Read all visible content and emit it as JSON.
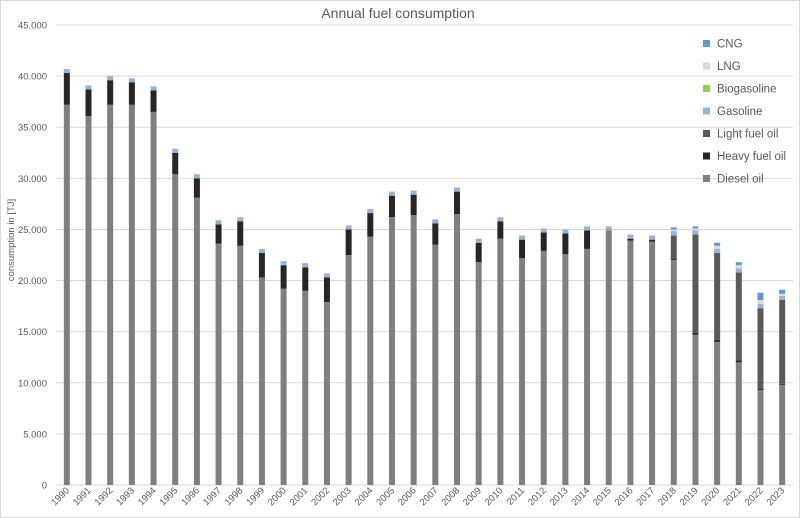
{
  "chart_data": {
    "type": "bar",
    "stacked": true,
    "title": "Annual fuel consumption",
    "xlabel": "",
    "ylabel": "consumption in [TJ]",
    "ylim": [
      0,
      45000
    ],
    "yticks": [
      0,
      5000,
      10000,
      15000,
      20000,
      25000,
      30000,
      35000,
      40000,
      45000
    ],
    "ytick_labels": [
      "0",
      "5.000",
      "10.000",
      "15.000",
      "20.000",
      "25.000",
      "30.000",
      "35.000",
      "40.000",
      "45.000"
    ],
    "grid": true,
    "legend_position": "right",
    "categories": [
      "1990",
      "1991",
      "1992",
      "1993",
      "1994",
      "1995",
      "1996",
      "1997",
      "1998",
      "1999",
      "2000",
      "2001",
      "2002",
      "2003",
      "2004",
      "2005",
      "2006",
      "2007",
      "2008",
      "2009",
      "2010",
      "2011",
      "2012",
      "2013",
      "2014",
      "2015",
      "2016",
      "2017",
      "2018",
      "2019",
      "2020",
      "2021",
      "2022",
      "2023"
    ],
    "series": [
      {
        "name": "Diesel oil",
        "color": "#7f7f7f",
        "values": [
          37200,
          36100,
          37200,
          37200,
          36500,
          30400,
          28100,
          23600,
          23400,
          20300,
          19200,
          19000,
          17900,
          22500,
          24300,
          26200,
          26400,
          23500,
          26500,
          21800,
          24100,
          22200,
          22900,
          22600,
          23100,
          24900,
          23900,
          23800,
          22000,
          14700,
          14000,
          12000,
          9300,
          9800
        ]
      },
      {
        "name": "Heavy fuel oil",
        "color": "#262626",
        "values": [
          3100,
          2600,
          2400,
          2200,
          2100,
          2100,
          1900,
          1900,
          2400,
          2400,
          2300,
          2300,
          2400,
          2500,
          2300,
          2100,
          2000,
          2100,
          2200,
          1900,
          1700,
          1800,
          1800,
          2000,
          1800,
          0,
          200,
          200,
          100,
          200,
          200,
          200,
          100,
          100
        ]
      },
      {
        "name": "Light fuel oil",
        "color": "#595959",
        "values": [
          0,
          0,
          0,
          0,
          0,
          0,
          0,
          0,
          0,
          0,
          0,
          0,
          0,
          0,
          0,
          0,
          0,
          0,
          0,
          0,
          0,
          0,
          0,
          0,
          0,
          0,
          0,
          0,
          2300,
          9600,
          8500,
          8600,
          7900,
          8200
        ]
      },
      {
        "name": "Gasoline",
        "color": "#95b3d7",
        "values": [
          400,
          400,
          400,
          400,
          400,
          400,
          400,
          400,
          400,
          400,
          400,
          400,
          400,
          400,
          400,
          400,
          400,
          400,
          400,
          400,
          400,
          400,
          400,
          400,
          400,
          400,
          400,
          400,
          400,
          400,
          400,
          400,
          400,
          400
        ]
      },
      {
        "name": "Biogasoline",
        "color": "#92d050",
        "values": [
          0,
          0,
          0,
          0,
          0,
          0,
          0,
          0,
          0,
          0,
          0,
          0,
          0,
          0,
          0,
          0,
          0,
          0,
          0,
          0,
          0,
          0,
          0,
          0,
          0,
          0,
          0,
          0,
          0,
          0,
          0,
          0,
          0,
          0
        ]
      },
      {
        "name": "LNG",
        "color": "#d9d9d9",
        "values": [
          0,
          0,
          0,
          0,
          0,
          0,
          0,
          0,
          0,
          0,
          0,
          0,
          0,
          0,
          0,
          0,
          0,
          0,
          0,
          0,
          0,
          0,
          0,
          0,
          0,
          0,
          0,
          0,
          200,
          200,
          300,
          300,
          400,
          200
        ]
      },
      {
        "name": "CNG",
        "color": "#5b9bd5",
        "values": [
          0,
          0,
          0,
          0,
          0,
          0,
          0,
          0,
          0,
          0,
          0,
          0,
          0,
          0,
          0,
          0,
          0,
          0,
          0,
          0,
          0,
          0,
          0,
          0,
          0,
          0,
          0,
          0,
          200,
          200,
          300,
          300,
          700,
          400
        ]
      }
    ]
  }
}
